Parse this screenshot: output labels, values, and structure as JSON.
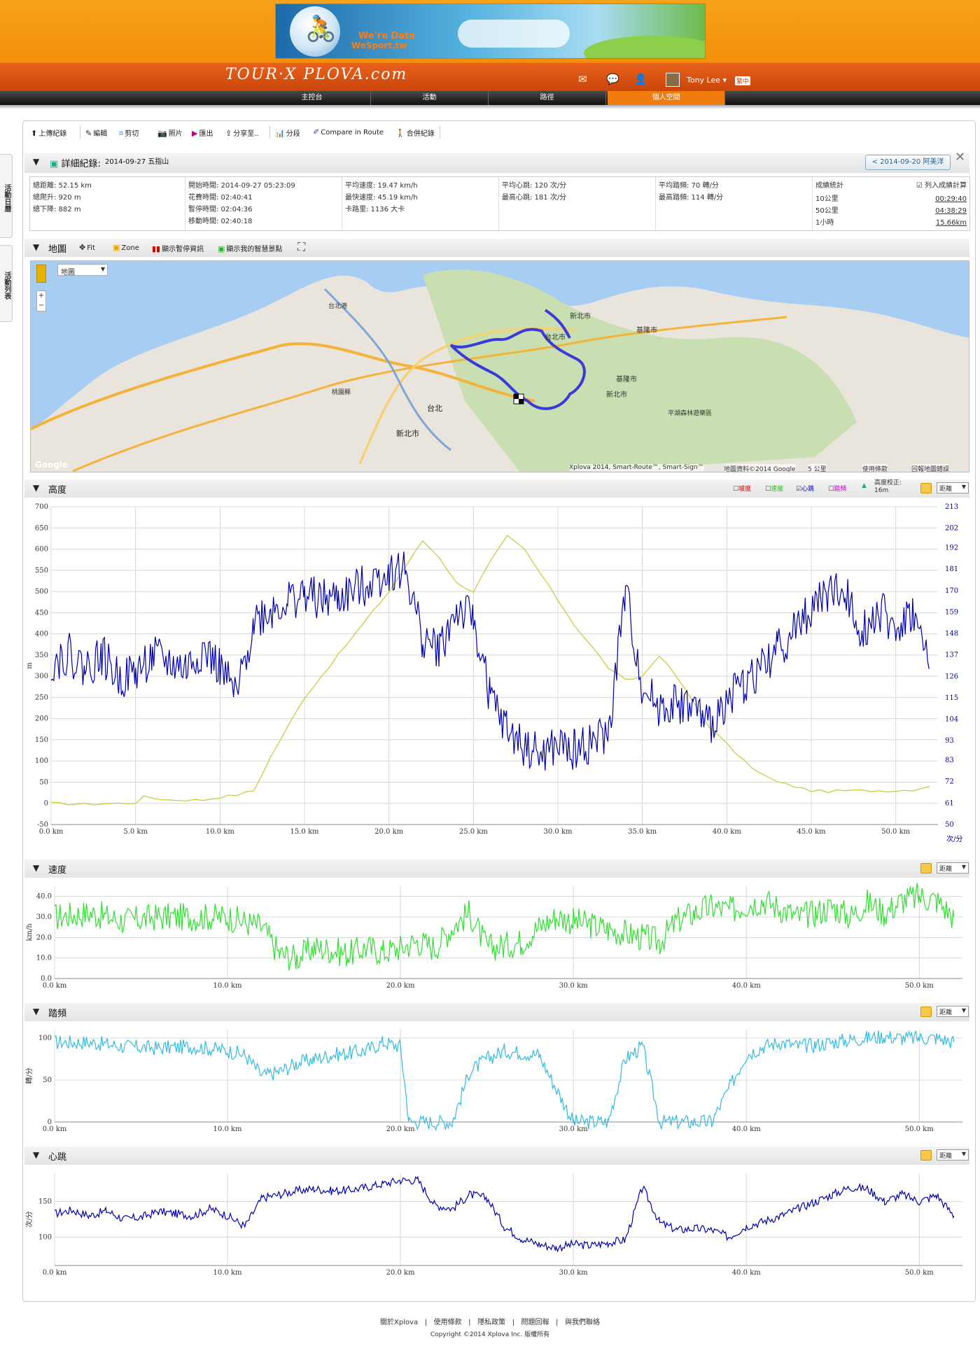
{
  "banner": {
    "line1": "We're Data",
    "line2": "WeSport.tw"
  },
  "brand": {
    "logo": "TOUR·X PLOVA.com"
  },
  "header": {
    "user": "Tony Lee ▾",
    "lang": "繁中"
  },
  "nav": {
    "tabs": [
      "主控台",
      "活動",
      "路徑",
      "個人空間"
    ],
    "active": 3
  },
  "side_tabs": [
    "活動日曆",
    "活動列表"
  ],
  "toolbar": {
    "items": [
      "上傳紀錄",
      "編輯",
      "剪切",
      "照片",
      "匯出",
      "分享至..",
      "分段",
      "Compare in Route",
      "合併紀錄"
    ]
  },
  "detail": {
    "title": "詳細紀錄:",
    "date": "2014-09-27 五指山",
    "prev": "< 2014-09-20 阿美洋"
  },
  "stats": {
    "c1": [
      "總距離: 52.15 km",
      "總爬升: 920 m",
      "總下降: 882 m"
    ],
    "c2": [
      "開始時間: 2014-09-27 05:23:09",
      "花費時間: 02:40:41",
      "暫停時間: 02:04:36",
      "移動時間: 02:40:18"
    ],
    "c3": [
      "平均速度: 19.47 km/h",
      "最快速度: 45.19 km/h",
      "卡路里: 1136 大卡"
    ],
    "c4": [
      "平均心跳: 120 次/分",
      "最高心跳: 181 次/分"
    ],
    "c5": [
      "平均踏頻: 70 轉/分",
      "最高踏頻: 114 轉/分"
    ],
    "c6": {
      "title": "成績統計",
      "check": "列入成績計算",
      "rows": [
        [
          "10公里",
          "00:29:40"
        ],
        [
          "50公里",
          "04:38:29"
        ],
        [
          "1小時",
          "15.66km"
        ]
      ]
    }
  },
  "mapsec": {
    "title": "地圖",
    "tools": [
      "Fit",
      "Zone",
      "顯示暫停資訊",
      "顯示我的智慧景點"
    ],
    "type": "地圖",
    "labels": [
      "台北港",
      "新北市",
      "台北市",
      "基隆市",
      "基隆市",
      "新北市",
      "平湖森林遊樂區",
      "台北",
      "新北市",
      "桃園縣"
    ],
    "attrib": "Xplova 2014, Smart-Route™, Smart-Sign™",
    "attrib2": "地圖資料©2014 Google",
    "scale": "5 公里",
    "links": [
      "使用條款",
      "回報地圖錯誤"
    ],
    "google": "Google"
  },
  "elev": {
    "title": "高度",
    "legend": [
      "坡度",
      "速度",
      "心跳",
      "踏頻"
    ],
    "legend_colors": [
      "#d00000",
      "#22bb22",
      "#0000aa",
      "#cc00cc"
    ],
    "correct_label": "高度校正:",
    "correct_val": "16m",
    "dropdown": "距離",
    "ylabel": "m",
    "y2label": "次/分"
  },
  "speed": {
    "title": "速度",
    "dropdown": "距離",
    "ylabel": "km/h"
  },
  "cadence": {
    "title": "踏頻",
    "dropdown": "距離",
    "ylabel": "轉/分"
  },
  "heart": {
    "title": "心跳",
    "dropdown": "距離",
    "ylabel": "次/分"
  },
  "chart_data": [
    {
      "type": "line",
      "title": "高度",
      "x_unit": "km",
      "xlim": [
        0,
        52.5
      ],
      "xticks": [
        "0.0 km",
        "5.0 km",
        "10.0 km",
        "15.0 km",
        "20.0 km",
        "25.0 km",
        "30.0 km",
        "35.0 km",
        "40.0 km",
        "45.0 km",
        "50.0 km"
      ],
      "ylim": [
        -50,
        700
      ],
      "yticks": [
        700,
        650,
        600,
        550,
        500,
        450,
        400,
        350,
        300,
        250,
        200,
        150,
        100,
        50,
        0,
        -50
      ],
      "y2ticks": [
        213,
        202,
        192,
        181,
        170,
        159,
        148,
        137,
        126,
        115,
        104,
        93,
        83,
        72,
        61,
        50
      ],
      "series": [
        {
          "name": "高度",
          "color": "#c8c838",
          "x": [
            0,
            2,
            4,
            5,
            5.5,
            7,
            9,
            10,
            11,
            12,
            13,
            14,
            15,
            16,
            17,
            18,
            19,
            20,
            21,
            22,
            23,
            24,
            25,
            26,
            27,
            28,
            29,
            30,
            31,
            32,
            33,
            34,
            35,
            36,
            37,
            38,
            39,
            40,
            41,
            42,
            43,
            44,
            45,
            46,
            47,
            48,
            49,
            50,
            51,
            52
          ],
          "y": [
            0,
            -2,
            0,
            2,
            15,
            8,
            8,
            15,
            20,
            30,
            110,
            180,
            250,
            300,
            350,
            400,
            450,
            500,
            560,
            620,
            580,
            520,
            500,
            570,
            630,
            600,
            540,
            480,
            420,
            370,
            320,
            290,
            300,
            350,
            300,
            240,
            180,
            140,
            100,
            70,
            50,
            40,
            30,
            28,
            30,
            30,
            30,
            30,
            32,
            40
          ]
        },
        {
          "name": "心跳",
          "color": "#0000aa",
          "x": [
            0,
            1,
            2,
            3,
            4,
            5,
            6,
            7,
            8,
            9,
            10,
            11,
            12,
            13,
            14,
            15,
            16,
            17,
            18,
            19,
            20,
            21,
            22,
            23,
            24,
            25,
            26,
            27,
            28,
            29,
            30,
            31,
            32,
            33,
            34,
            35,
            36,
            37,
            38,
            39,
            40,
            41,
            42,
            43,
            44,
            45,
            46,
            47,
            48,
            49,
            50,
            51,
            52
          ],
          "y": [
            133,
            138,
            130,
            137,
            125,
            128,
            136,
            133,
            130,
            140,
            130,
            115,
            155,
            160,
            165,
            168,
            165,
            166,
            170,
            175,
            180,
            180,
            145,
            140,
            160,
            155,
            115,
            98,
            90,
            85,
            90,
            88,
            92,
            96,
            170,
            120,
            110,
            112,
            110,
            100,
            115,
            122,
            130,
            140,
            150,
            160,
            170,
            168,
            150,
            160,
            150,
            159,
            130
          ]
        }
      ]
    },
    {
      "type": "line",
      "title": "速度",
      "x_unit": "km",
      "xlim": [
        0,
        52.5
      ],
      "xticks": [
        "0.0 km",
        "10.0 km",
        "20.0 km",
        "30.0 km",
        "40.0 km",
        "50.0 km"
      ],
      "ylim": [
        0,
        45
      ],
      "yticks": [
        40,
        30,
        20,
        10,
        0
      ],
      "series": [
        {
          "name": "速度",
          "color": "#33dd33",
          "x": [
            0,
            2,
            4,
            6,
            8,
            10,
            12,
            13,
            14,
            15,
            16,
            17,
            18,
            19,
            20,
            21,
            22,
            23,
            24,
            25,
            26,
            27,
            28,
            29,
            30,
            31,
            32,
            33,
            34,
            35,
            36,
            37,
            38,
            39,
            40,
            41,
            42,
            43,
            44,
            45,
            46,
            47,
            48,
            49,
            50,
            51,
            52
          ],
          "y": [
            30,
            32,
            28,
            30,
            30,
            30,
            25,
            12,
            10,
            15,
            14,
            12,
            15,
            13,
            15,
            18,
            15,
            25,
            32,
            15,
            16,
            18,
            25,
            30,
            28,
            26,
            24,
            22,
            20,
            18,
            28,
            32,
            35,
            33,
            36,
            38,
            34,
            30,
            32,
            35,
            30,
            37,
            32,
            38,
            40,
            38,
            30
          ]
        }
      ]
    },
    {
      "type": "line",
      "title": "踏頻",
      "x_unit": "km",
      "xlim": [
        0,
        52.5
      ],
      "xticks": [
        "0.0 km",
        "10.0 km",
        "20.0 km",
        "30.0 km",
        "40.0 km",
        "50.0 km"
      ],
      "ylim": [
        0,
        110
      ],
      "yticks": [
        100,
        50,
        0
      ],
      "series": [
        {
          "name": "踏頻",
          "color": "#33bbdd",
          "x": [
            0,
            2,
            4,
            6,
            8,
            10,
            11,
            12,
            13,
            14,
            15,
            16,
            17,
            18,
            19,
            20,
            20.5,
            21,
            23,
            24,
            25,
            26,
            28,
            30,
            32,
            33,
            34,
            35,
            38,
            40,
            41,
            42,
            43,
            44,
            45,
            46,
            47,
            48,
            49,
            50,
            51,
            52
          ],
          "y": [
            95,
            95,
            90,
            88,
            90,
            85,
            80,
            55,
            60,
            70,
            75,
            80,
            82,
            85,
            95,
            90,
            0,
            0,
            0,
            60,
            75,
            85,
            80,
            0,
            0,
            75,
            90,
            0,
            0,
            80,
            90,
            95,
            90,
            92,
            95,
            98,
            100,
            102,
            100,
            100,
            100,
            95
          ]
        }
      ]
    },
    {
      "type": "line",
      "title": "心跳",
      "x_unit": "km",
      "xlim": [
        0,
        52.5
      ],
      "xticks": [
        "0.0 km",
        "10.0 km",
        "20.0 km",
        "30.0 km",
        "40.0 km",
        "50.0 km"
      ],
      "ylim": [
        60,
        190
      ],
      "yticks": [
        150,
        100
      ],
      "series": [
        {
          "name": "心跳",
          "color": "#0000aa",
          "x": [
            0,
            1,
            2,
            3,
            4,
            5,
            6,
            7,
            8,
            9,
            10,
            11,
            12,
            13,
            14,
            15,
            16,
            17,
            18,
            19,
            20,
            21,
            22,
            23,
            24,
            25,
            26,
            27,
            28,
            29,
            30,
            31,
            32,
            33,
            34,
            35,
            36,
            37,
            38,
            39,
            40,
            41,
            42,
            43,
            44,
            45,
            46,
            47,
            48,
            49,
            50,
            51,
            52
          ],
          "y": [
            133,
            138,
            130,
            137,
            125,
            128,
            136,
            133,
            130,
            140,
            130,
            115,
            155,
            160,
            165,
            168,
            165,
            166,
            170,
            175,
            180,
            180,
            145,
            140,
            160,
            155,
            115,
            98,
            90,
            85,
            90,
            88,
            92,
            96,
            170,
            120,
            110,
            112,
            110,
            100,
            115,
            122,
            130,
            140,
            150,
            160,
            170,
            168,
            150,
            160,
            150,
            159,
            130
          ]
        }
      ]
    }
  ],
  "footer": {
    "links": [
      "關於Xplova",
      "使用條款",
      "隱私政策",
      "問題回報",
      "與我們聯絡"
    ],
    "copy": "Copyright ©2014 Xplova Inc. 版權所有"
  }
}
